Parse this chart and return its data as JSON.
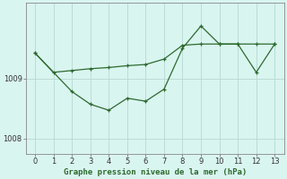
{
  "x_upper": [
    0,
    1,
    2,
    3,
    4,
    5,
    6,
    7,
    8,
    9,
    10,
    11,
    12,
    13
  ],
  "y_upper": [
    1009.42,
    1009.1,
    1009.13,
    1009.16,
    1009.18,
    1009.21,
    1009.23,
    1009.32,
    1009.55,
    1009.57,
    1009.57,
    1009.57,
    1009.1,
    1009.57
  ],
  "x_lower": [
    0,
    2,
    3,
    4,
    5,
    6,
    7,
    8,
    9,
    10,
    11,
    12,
    13
  ],
  "y_lower": [
    1009.42,
    1008.78,
    1008.57,
    1008.47,
    1008.67,
    1008.62,
    1008.82,
    1009.5,
    1009.87,
    1009.57,
    1009.57,
    1009.57,
    1009.57
  ],
  "line_color": "#2d6a2d",
  "bg_color": "#d9f5f0",
  "grid_color_major": "#b8d8d0",
  "grid_color_minor": "#cce8e0",
  "xlabel": "Graphe pression niveau de la mer (hPa)",
  "yticks": [
    1008,
    1009
  ],
  "ylim": [
    1007.75,
    1010.25
  ],
  "xlim": [
    -0.5,
    13.5
  ]
}
